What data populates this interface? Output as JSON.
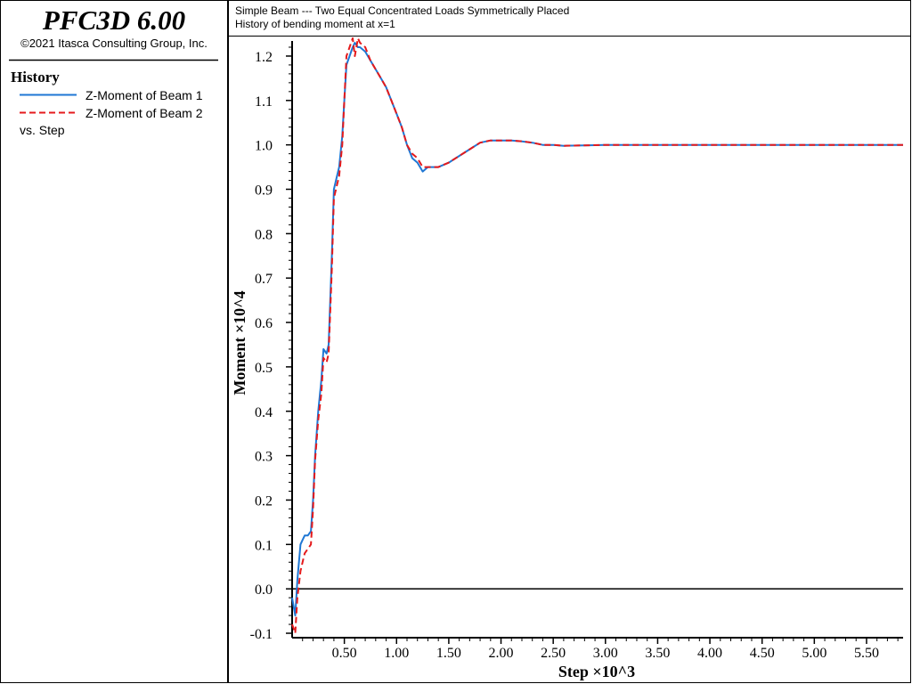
{
  "app": {
    "title": "PFC3D 6.00",
    "copyright": "©2021 Itasca Consulting Group, Inc."
  },
  "legend": {
    "heading": "History",
    "vs_label": "vs. Step"
  },
  "plot": {
    "title_line1": "Simple Beam --- Two Equal Concentrated Loads Symmetrically Placed",
    "title_line2": "History of bending moment at x=1"
  },
  "colors": {
    "beam1": "#1f77d4",
    "beam2": "#e41a1c",
    "axis": "#000000"
  },
  "chart_data": {
    "type": "line",
    "xlabel": "Step ×10^3",
    "ylabel": "Moment ×10^4",
    "xlim": [
      0.0,
      5.85
    ],
    "ylim": [
      -0.11,
      1.23
    ],
    "xticks": [
      "0.50",
      "1.00",
      "1.50",
      "2.00",
      "2.50",
      "3.00",
      "3.50",
      "4.00",
      "4.50",
      "5.00",
      "5.50"
    ],
    "yticks": [
      "-0.1",
      "0.0",
      "0.1",
      "0.2",
      "0.3",
      "0.4",
      "0.5",
      "0.6",
      "0.7",
      "0.8",
      "0.9",
      "1.0",
      "1.1",
      "1.2"
    ],
    "zero_line": true,
    "grid": false,
    "series": [
      {
        "name": "Z-Moment of Beam 1",
        "style": "solid",
        "x": [
          0.0,
          0.03,
          0.05,
          0.08,
          0.1,
          0.12,
          0.15,
          0.18,
          0.2,
          0.22,
          0.25,
          0.28,
          0.3,
          0.33,
          0.35,
          0.38,
          0.4,
          0.43,
          0.45,
          0.48,
          0.5,
          0.52,
          0.55,
          0.58,
          0.6,
          0.63,
          0.65,
          0.7,
          0.75,
          0.8,
          0.85,
          0.9,
          0.95,
          1.0,
          1.05,
          1.1,
          1.15,
          1.2,
          1.25,
          1.3,
          1.4,
          1.5,
          1.6,
          1.7,
          1.8,
          1.9,
          2.0,
          2.1,
          2.2,
          2.3,
          2.4,
          2.5,
          2.6,
          2.8,
          3.0,
          3.5,
          4.0,
          4.5,
          5.0,
          5.5,
          5.85
        ],
        "y": [
          -0.02,
          -0.06,
          0.02,
          0.1,
          0.11,
          0.12,
          0.12,
          0.13,
          0.2,
          0.3,
          0.4,
          0.47,
          0.54,
          0.53,
          0.55,
          0.75,
          0.9,
          0.93,
          0.95,
          1.02,
          1.1,
          1.18,
          1.2,
          1.22,
          1.23,
          1.22,
          1.22,
          1.21,
          1.19,
          1.17,
          1.15,
          1.13,
          1.1,
          1.07,
          1.04,
          1.0,
          0.97,
          0.96,
          0.94,
          0.95,
          0.95,
          0.96,
          0.975,
          0.99,
          1.005,
          1.01,
          1.01,
          1.01,
          1.008,
          1.005,
          1.0,
          1.0,
          0.998,
          0.999,
          1.0,
          1.0,
          1.0,
          1.0,
          1.0,
          1.0,
          1.0
        ]
      },
      {
        "name": "Z-Moment of Beam 2",
        "style": "dashed",
        "x": [
          0.0,
          0.03,
          0.05,
          0.08,
          0.1,
          0.12,
          0.15,
          0.18,
          0.2,
          0.22,
          0.25,
          0.28,
          0.3,
          0.33,
          0.35,
          0.38,
          0.4,
          0.43,
          0.45,
          0.48,
          0.5,
          0.52,
          0.55,
          0.58,
          0.6,
          0.63,
          0.65,
          0.7,
          0.75,
          0.8,
          0.85,
          0.9,
          0.95,
          1.0,
          1.05,
          1.1,
          1.15,
          1.2,
          1.25,
          1.3,
          1.4,
          1.5,
          1.6,
          1.7,
          1.8,
          1.9,
          2.0,
          2.1,
          2.2,
          2.3,
          2.4,
          2.5,
          2.6,
          2.8,
          3.0,
          3.5,
          4.0,
          4.5,
          5.0,
          5.5,
          5.85
        ],
        "y": [
          -0.08,
          -0.1,
          -0.02,
          0.04,
          0.06,
          0.08,
          0.09,
          0.1,
          0.18,
          0.29,
          0.38,
          0.44,
          0.52,
          0.51,
          0.53,
          0.72,
          0.88,
          0.91,
          0.93,
          1.0,
          1.1,
          1.2,
          1.22,
          1.24,
          1.2,
          1.24,
          1.23,
          1.22,
          1.19,
          1.17,
          1.15,
          1.13,
          1.1,
          1.07,
          1.04,
          1.0,
          0.98,
          0.97,
          0.95,
          0.95,
          0.95,
          0.96,
          0.975,
          0.99,
          1.005,
          1.01,
          1.01,
          1.01,
          1.008,
          1.005,
          1.0,
          1.0,
          0.998,
          0.999,
          1.0,
          1.0,
          1.0,
          1.0,
          1.0,
          1.0,
          1.0
        ]
      }
    ]
  }
}
